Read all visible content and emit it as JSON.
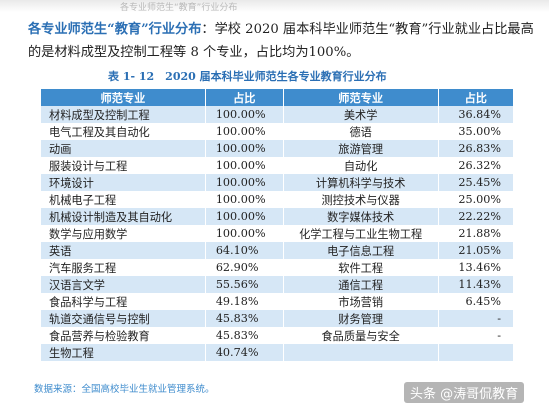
{
  "header_strip": "各专业师范生“教育”行业分布",
  "paragraph": {
    "highlight": "各专业师范生“教育”行业分布",
    "text": "：学校 2020 届本科毕业师范生“教育”行业就业占比最高的是材料成型及控制工程等 8 个专业，占比均为100%。"
  },
  "table": {
    "caption": "表 1- 12　2020 届本科毕业师范生各专业教育行业分布",
    "headers": [
      "师范专业",
      "占比",
      "师范专业",
      "占比"
    ],
    "rows": [
      [
        "材料成型及控制工程",
        "100.00%",
        "美术学",
        "36.84%"
      ],
      [
        "电气工程及其自动化",
        "100.00%",
        "德语",
        "35.00%"
      ],
      [
        "动画",
        "100.00%",
        "旅游管理",
        "26.83%"
      ],
      [
        "服装设计与工程",
        "100.00%",
        "自动化",
        "26.32%"
      ],
      [
        "环境设计",
        "100.00%",
        "计算机科学与技术",
        "25.45%"
      ],
      [
        "机械电子工程",
        "100.00%",
        "测控技术与仪器",
        "25.00%"
      ],
      [
        "机械设计制造及其自动化",
        "100.00%",
        "数字媒体技术",
        "22.22%"
      ],
      [
        "数学与应用数学",
        "100.00%",
        "化学工程与工业生物工程",
        "21.88%"
      ],
      [
        "英语",
        "64.10%",
        "电子信息工程",
        "21.05%"
      ],
      [
        "汽车服务工程",
        "62.90%",
        "软件工程",
        "13.46%"
      ],
      [
        "汉语言文学",
        "55.56%",
        "通信工程",
        "11.43%"
      ],
      [
        "食品科学与工程",
        "49.18%",
        "市场营销",
        "6.45%"
      ],
      [
        "轨道交通信号与控制",
        "45.83%",
        "财务管理",
        "-"
      ],
      [
        "食品营养与检验教育",
        "45.83%",
        "食品质量与安全",
        "-"
      ],
      [
        "生物工程",
        "40.74%",
        "",
        ""
      ]
    ]
  },
  "source": "数据来源：全国高校毕业生就业管理系统。",
  "watermark": "头条 @涛哥侃教育",
  "colors": {
    "header_bg": "#3f8ccd",
    "row_stripe": "#d6e7f6",
    "highlight_text": "#2b6fb4"
  }
}
